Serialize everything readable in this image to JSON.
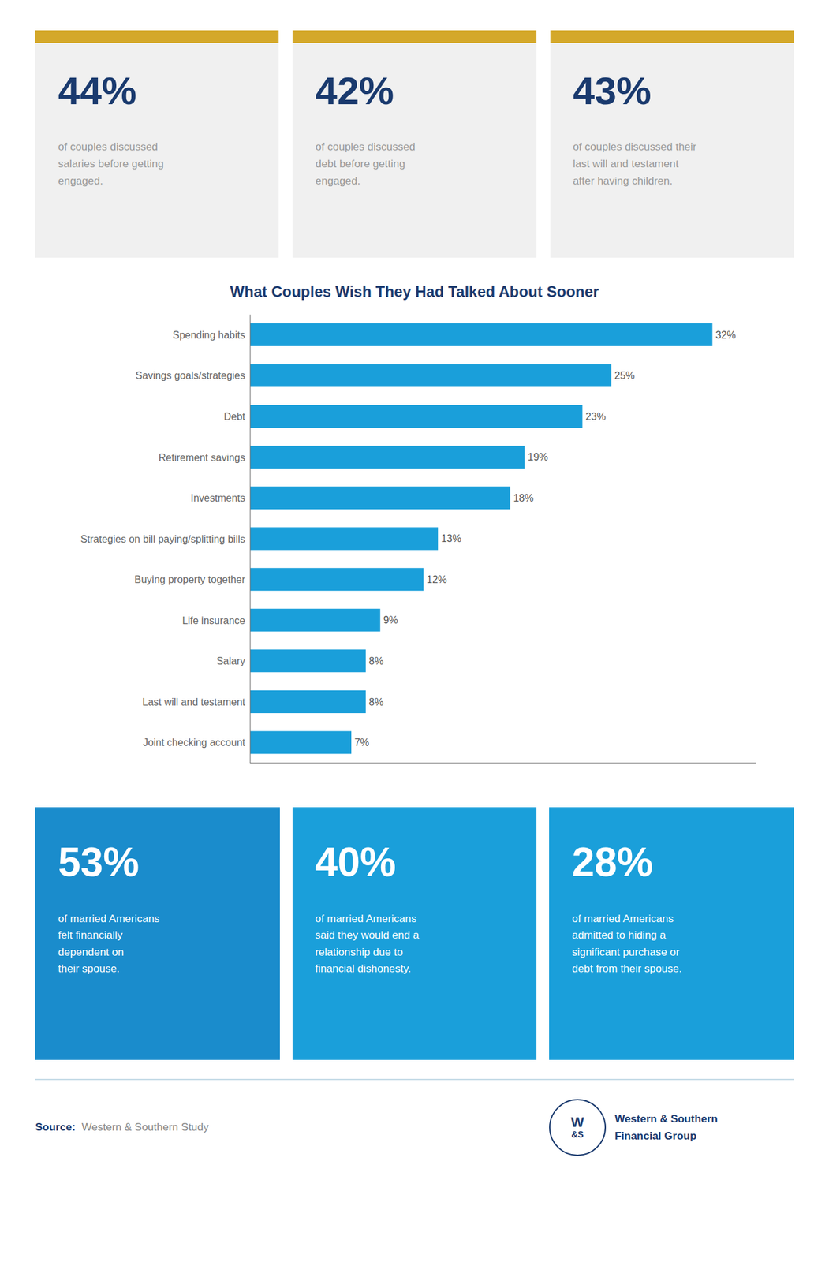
{
  "chart_data": {
    "type": "bar",
    "orientation": "horizontal",
    "title": "What Couples Wish They Had Talked About Sooner",
    "categories": [
      "Spending habits",
      "Savings goals/strategies",
      "Debt",
      "Retirement savings",
      "Investments",
      "Strategies on bill paying/splitting bills",
      "Buying property together",
      "Life insurance",
      "Salary",
      "Last will and testament",
      "Joint checking account"
    ],
    "values": [
      32,
      25,
      23,
      19,
      18,
      13,
      12,
      9,
      8,
      8,
      7
    ],
    "value_labels": [
      "32%",
      "25%",
      "23%",
      "19%",
      "18%",
      "13%",
      "12%",
      "9%",
      "8%",
      "8%",
      "7%"
    ],
    "data_labels": true,
    "color": "#1a9fda",
    "xlim": [
      0,
      35
    ],
    "tick_labels": "y",
    "grid": false,
    "annotations": [
      "44%",
      "of couples discussed\nsalaries before getting\nengaged.",
      "42%",
      "of couples discussed\ndebt before getting\nengaged.",
      "43%",
      "of couples discussed their\nlast will and testament\nafter having children.",
      "53%",
      "of married Americans\nfelt financially\ndependent on\ntheir spouse.",
      "40%",
      "of married Americans\nsaid they would end a\nrelationship due to\nfinancial dishonesty.",
      "28%",
      "of married Americans\nadmitted to hiding a\nsignificant purchase or\ndebt from their spouse.",
      "Source:",
      "Western & Southern Study",
      "W",
      "&S",
      "Western & Southern",
      "Financial Group"
    ]
  }
}
